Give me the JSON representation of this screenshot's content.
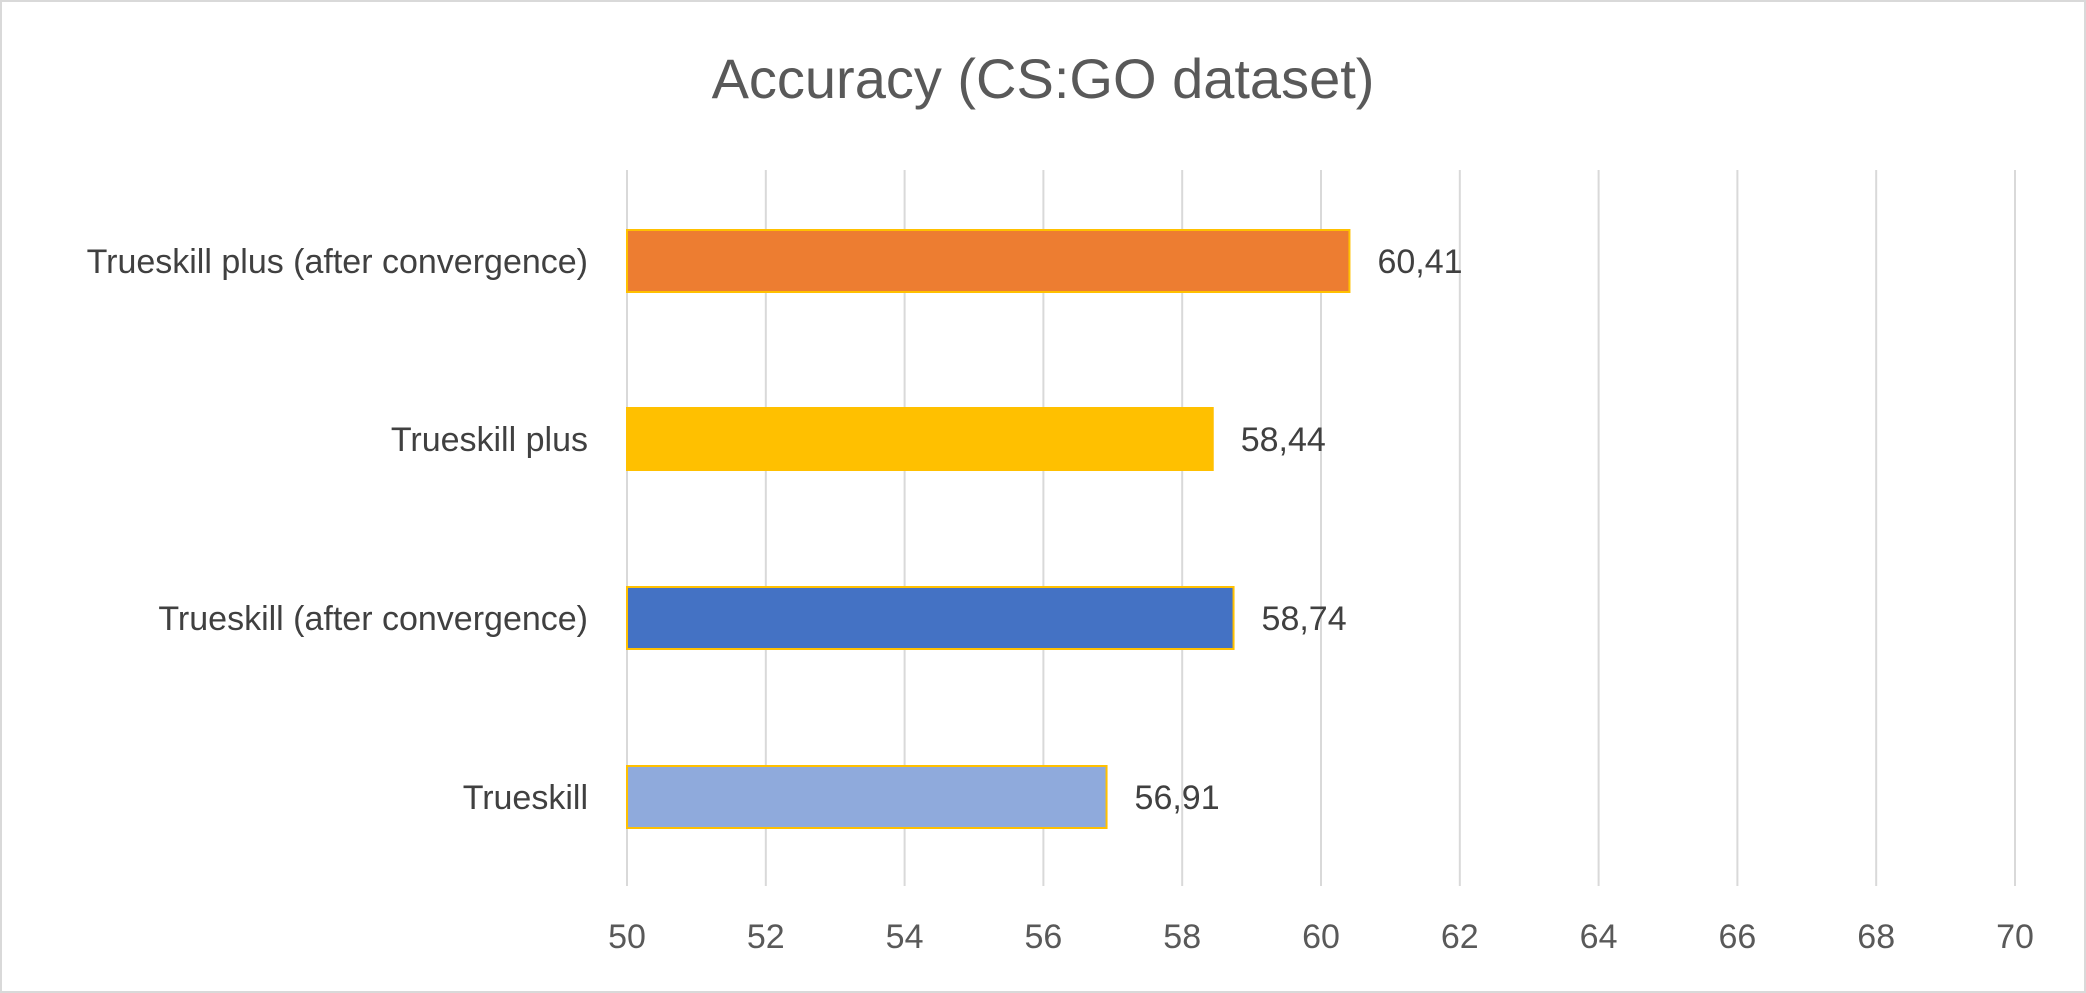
{
  "chart_data": {
    "type": "bar",
    "orientation": "horizontal",
    "title": "Accuracy (CS:GO dataset)",
    "xlabel": "",
    "ylabel": "",
    "xlim": [
      50,
      70
    ],
    "xticks": [
      50,
      52,
      54,
      56,
      58,
      60,
      62,
      64,
      66,
      68,
      70
    ],
    "grid": "vertical",
    "legend": "none",
    "categories": [
      "Trueskill plus (after convergence)",
      "Trueskill plus",
      "Trueskill (after convergence)",
      "Trueskill"
    ],
    "values": [
      60.41,
      58.44,
      58.74,
      56.91
    ],
    "value_labels": [
      "60,41",
      "58,44",
      "58,74",
      "56,91"
    ],
    "colors": [
      "#ED7D31",
      "#FFC000",
      "#4472C4",
      "#8FAADC"
    ],
    "outline_color": "#FFC000"
  }
}
